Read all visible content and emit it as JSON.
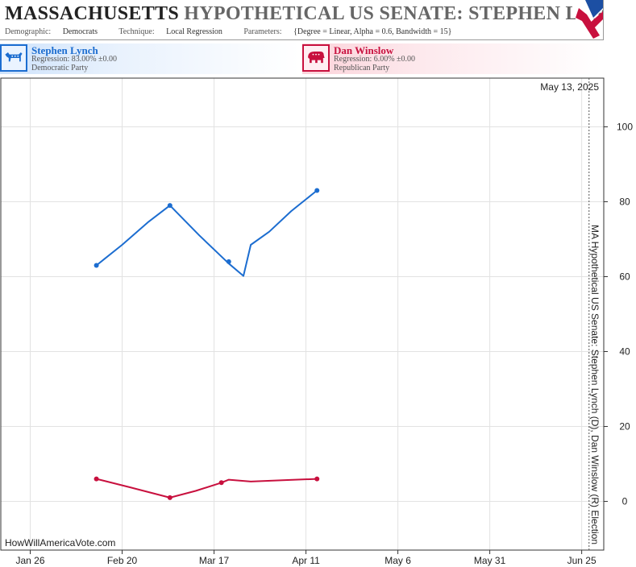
{
  "header": {
    "state": "MASSACHUSETTS",
    "race": "HYPOTHETICAL US SENATE: STEPHEN LYNCH",
    "demographic_label": "Demographic:",
    "demographic_value": "Democrats",
    "technique_label": "Technique:",
    "technique_value": "Local Regression",
    "parameters_label": "Parameters:",
    "parameters_value": "{Degree = Linear, Alpha = 0.6, Bandwidth = 15}"
  },
  "candidates": [
    {
      "name": "Stephen Lynch",
      "regression": "Regression: 83.00% ±0.00",
      "party": "Democratic Party",
      "color": "#1c6dd0",
      "icon": "donkey-icon"
    },
    {
      "name": "Dan Winslow",
      "regression": "Regression: 6.00% ±0.00",
      "party": "Republican Party",
      "color": "#c8103e",
      "icon": "elephant-icon"
    }
  ],
  "chart_data": {
    "type": "line",
    "date_label": "May 13, 2025",
    "vertical_label": "MA Hypothetical US Senate: Stephen Lynch (D), Dan Winslow (R) Election",
    "watermark": "HowWillAmericaVote.com",
    "x_ticks": [
      "Jan 26",
      "Feb 20",
      "Mar 17",
      "Apr 11",
      "May 6",
      "May 31",
      "Jun 25"
    ],
    "x_tick_dates": [
      "2025-01-26",
      "2025-02-20",
      "2025-03-17",
      "2025-04-11",
      "2025-05-06",
      "2025-05-31",
      "2025-06-25"
    ],
    "x_range": [
      "2025-01-18",
      "2025-07-01"
    ],
    "y_ticks": [
      0,
      20,
      40,
      60,
      80,
      100
    ],
    "ylim": [
      -13,
      113
    ],
    "grid": true,
    "marker_date": "2025-06-27",
    "series": [
      {
        "name": "Stephen Lynch",
        "color": "#1c6dd0",
        "points": [
          {
            "x": "2025-02-13",
            "y": 63
          },
          {
            "x": "2025-03-05",
            "y": 79
          },
          {
            "x": "2025-03-21",
            "y": 64
          },
          {
            "x": "2025-04-14",
            "y": 83
          }
        ],
        "line": [
          {
            "x": "2025-02-13",
            "y": 63
          },
          {
            "x": "2025-02-20",
            "y": 68.5
          },
          {
            "x": "2025-02-27",
            "y": 74.5
          },
          {
            "x": "2025-03-05",
            "y": 79
          },
          {
            "x": "2025-03-13",
            "y": 71
          },
          {
            "x": "2025-03-21",
            "y": 63.5
          },
          {
            "x": "2025-03-25",
            "y": 60.2
          },
          {
            "x": "2025-03-27",
            "y": 68.5
          },
          {
            "x": "2025-04-01",
            "y": 72
          },
          {
            "x": "2025-04-07",
            "y": 77.5
          },
          {
            "x": "2025-04-14",
            "y": 83
          }
        ]
      },
      {
        "name": "Dan Winslow",
        "color": "#c8103e",
        "points": [
          {
            "x": "2025-02-13",
            "y": 6
          },
          {
            "x": "2025-03-05",
            "y": 1
          },
          {
            "x": "2025-03-19",
            "y": 5
          },
          {
            "x": "2025-04-14",
            "y": 6
          }
        ],
        "line": [
          {
            "x": "2025-02-13",
            "y": 6
          },
          {
            "x": "2025-02-22",
            "y": 3.8
          },
          {
            "x": "2025-03-05",
            "y": 1
          },
          {
            "x": "2025-03-12",
            "y": 2.8
          },
          {
            "x": "2025-03-19",
            "y": 5
          },
          {
            "x": "2025-03-21",
            "y": 5.8
          },
          {
            "x": "2025-03-27",
            "y": 5.3
          },
          {
            "x": "2025-04-06",
            "y": 5.7
          },
          {
            "x": "2025-04-14",
            "y": 6
          }
        ]
      }
    ]
  }
}
